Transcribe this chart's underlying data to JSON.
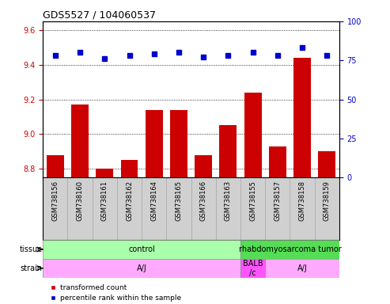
{
  "title": "GDS5527 / 104060537",
  "samples": [
    "GSM738156",
    "GSM738160",
    "GSM738161",
    "GSM738162",
    "GSM738164",
    "GSM738165",
    "GSM738166",
    "GSM738163",
    "GSM738155",
    "GSM738157",
    "GSM738158",
    "GSM738159"
  ],
  "bar_values": [
    8.88,
    9.17,
    8.8,
    8.85,
    9.14,
    9.14,
    8.88,
    9.05,
    9.24,
    8.93,
    9.44,
    8.9
  ],
  "dot_values": [
    78,
    80,
    76,
    78,
    79,
    80,
    77,
    78,
    80,
    78,
    83,
    78
  ],
  "bar_color": "#cc0000",
  "dot_color": "#0000cc",
  "ylim_left": [
    8.75,
    9.65
  ],
  "ylim_right": [
    0,
    100
  ],
  "yticks_left": [
    8.8,
    9.0,
    9.2,
    9.4,
    9.6
  ],
  "yticks_right": [
    0,
    25,
    50,
    75,
    100
  ],
  "tissue_groups": [
    {
      "label": "control",
      "start": 0,
      "end": 8,
      "color": "#aaffaa"
    },
    {
      "label": "rhabdomyosarcoma tumor",
      "start": 8,
      "end": 12,
      "color": "#55dd55"
    }
  ],
  "strain_groups": [
    {
      "label": "A/J",
      "start": 0,
      "end": 8,
      "color": "#ffaaff"
    },
    {
      "label": "BALB\n/c",
      "start": 8,
      "end": 9,
      "color": "#ff55ff"
    },
    {
      "label": "A/J",
      "start": 9,
      "end": 12,
      "color": "#ffaaff"
    }
  ],
  "tissue_label": "tissue",
  "strain_label": "strain",
  "legend_items": [
    {
      "color": "#cc0000",
      "marker": "s",
      "label": "transformed count"
    },
    {
      "color": "#0000cc",
      "marker": "s",
      "label": "percentile rank within the sample"
    }
  ],
  "background_color": "#ffffff",
  "plot_bg_color": "#ffffff",
  "xticklabel_bg": "#d0d0d0",
  "grid_color": "#000000"
}
